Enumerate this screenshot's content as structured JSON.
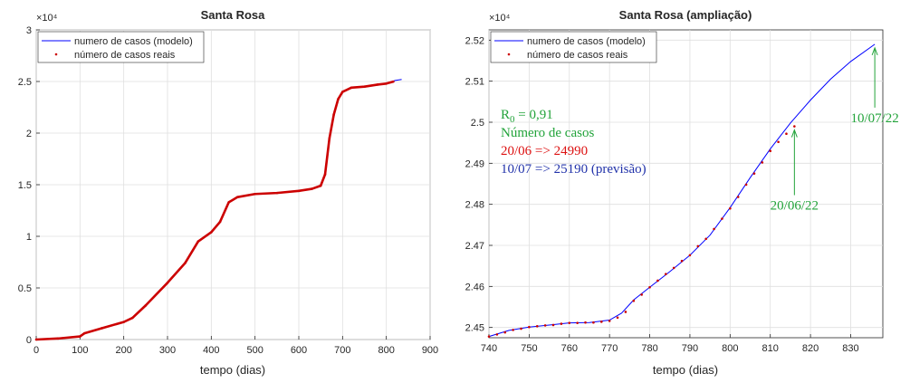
{
  "chart_data": [
    {
      "type": "line",
      "title": "Santa Rosa",
      "xlabel": "tempo (dias)",
      "ylabel": "",
      "y_exponent": "×10⁴",
      "xlim": [
        0,
        900
      ],
      "ylim": [
        0,
        3
      ],
      "xticks": [
        0,
        100,
        200,
        300,
        400,
        500,
        600,
        700,
        800,
        900
      ],
      "yticks": [
        0,
        0.5,
        1,
        1.5,
        2,
        2.5,
        3
      ],
      "xtick_labels": [
        "0",
        "100",
        "200",
        "300",
        "400",
        "500",
        "600",
        "700",
        "800",
        "900"
      ],
      "ytick_labels": [
        "0",
        "0.5",
        "1",
        "1.5",
        "2",
        "2.5",
        "3"
      ],
      "grid": true,
      "legend_position": "top-left",
      "series": [
        {
          "name": "numero de casos (modelo)",
          "style": "line",
          "color": "#0000ff",
          "x": [
            0,
            50,
            100,
            110,
            150,
            200,
            220,
            250,
            300,
            340,
            370,
            400,
            420,
            440,
            460,
            500,
            550,
            600,
            630,
            650,
            660,
            670,
            680,
            690,
            700,
            720,
            750,
            780,
            800,
            820,
            835
          ],
          "y": [
            0,
            0.01,
            0.03,
            0.06,
            0.11,
            0.17,
            0.21,
            0.33,
            0.55,
            0.74,
            0.95,
            1.04,
            1.14,
            1.33,
            1.38,
            1.41,
            1.42,
            1.44,
            1.46,
            1.49,
            1.6,
            1.95,
            2.18,
            2.33,
            2.4,
            2.44,
            2.45,
            2.47,
            2.48,
            2.51,
            2.52
          ]
        },
        {
          "name": "número de casos reais",
          "style": "dots",
          "color": "#cc0000",
          "x": [
            0,
            50,
            100,
            110,
            150,
            200,
            220,
            250,
            300,
            340,
            370,
            400,
            420,
            440,
            460,
            500,
            550,
            600,
            630,
            650,
            660,
            670,
            680,
            690,
            700,
            720,
            750,
            780,
            800,
            816
          ],
          "y": [
            0,
            0.01,
            0.03,
            0.06,
            0.11,
            0.17,
            0.21,
            0.33,
            0.55,
            0.74,
            0.95,
            1.04,
            1.14,
            1.33,
            1.38,
            1.41,
            1.42,
            1.44,
            1.46,
            1.49,
            1.6,
            1.95,
            2.18,
            2.33,
            2.4,
            2.44,
            2.45,
            2.47,
            2.48,
            2.499
          ]
        }
      ]
    },
    {
      "type": "line",
      "title": "Santa Rosa (ampliação)",
      "xlabel": "tempo (dias)",
      "ylabel": "",
      "y_exponent": "×10⁴",
      "xlim": [
        740,
        838
      ],
      "ylim": [
        2.4475,
        2.5225
      ],
      "xticks": [
        740,
        750,
        760,
        770,
        780,
        790,
        800,
        810,
        820,
        830
      ],
      "yticks": [
        2.45,
        2.46,
        2.47,
        2.48,
        2.49,
        2.5,
        2.51,
        2.52
      ],
      "xtick_labels": [
        "740",
        "750",
        "760",
        "770",
        "780",
        "790",
        "800",
        "810",
        "820",
        "830"
      ],
      "ytick_labels": [
        "2.45",
        "2.46",
        "2.47",
        "2.48",
        "2.49",
        "2.5",
        "2.51",
        "2.52"
      ],
      "grid": true,
      "legend_position": "top-left",
      "series": [
        {
          "name": "numero de casos (modelo)",
          "style": "line",
          "color": "#0000ff",
          "x": [
            740,
            745,
            750,
            755,
            760,
            765,
            770,
            773,
            776,
            780,
            785,
            790,
            795,
            800,
            805,
            810,
            815,
            820,
            825,
            830,
            836
          ],
          "y": [
            2.4478,
            2.4493,
            2.4501,
            2.4506,
            2.4511,
            2.4512,
            2.4518,
            2.4535,
            2.4567,
            2.4598,
            2.4636,
            2.4676,
            2.4725,
            2.4792,
            2.4865,
            2.4935,
            2.4998,
            2.5054,
            2.5105,
            2.5148,
            2.519
          ]
        },
        {
          "name": "número de casos reais",
          "style": "dots",
          "color": "#cc0000",
          "x": [
            740,
            742,
            744,
            746,
            748,
            750,
            752,
            754,
            756,
            758,
            760,
            762,
            764,
            766,
            768,
            770,
            772,
            774,
            776,
            778,
            780,
            782,
            784,
            786,
            788,
            790,
            792,
            794,
            796,
            798,
            800,
            802,
            804,
            806,
            808,
            810,
            812,
            814,
            816
          ],
          "y": [
            2.4478,
            2.4483,
            2.4488,
            2.4494,
            2.4497,
            2.4501,
            2.4503,
            2.4505,
            2.4506,
            2.4509,
            2.4511,
            2.4511,
            2.4512,
            2.4512,
            2.4514,
            2.4516,
            2.4524,
            2.4538,
            2.4565,
            2.458,
            2.4598,
            2.4614,
            2.463,
            2.4645,
            2.4662,
            2.4676,
            2.4698,
            2.4716,
            2.474,
            2.4765,
            2.479,
            2.4818,
            2.4848,
            2.4875,
            2.4902,
            2.493,
            2.4952,
            2.4972,
            2.499
          ]
        }
      ],
      "annotations": {
        "r0_label": "R",
        "r0_subscript": "0",
        "r0_value": " = 0,91",
        "cases_title": "Número de casos",
        "observed_line": "20/06 => 24990",
        "forecast_line": "10/07 => 25190 (previsão)",
        "arrow_observed_label": "20/06/22",
        "arrow_observed_x": 816,
        "arrow_observed_y": 2.499,
        "arrow_forecast_label": "10/07/22",
        "arrow_forecast_x": 836,
        "arrow_forecast_y": 2.519,
        "colors": {
          "green": "#22a33a",
          "red": "#dd1111",
          "blue": "#2233aa"
        }
      }
    }
  ]
}
